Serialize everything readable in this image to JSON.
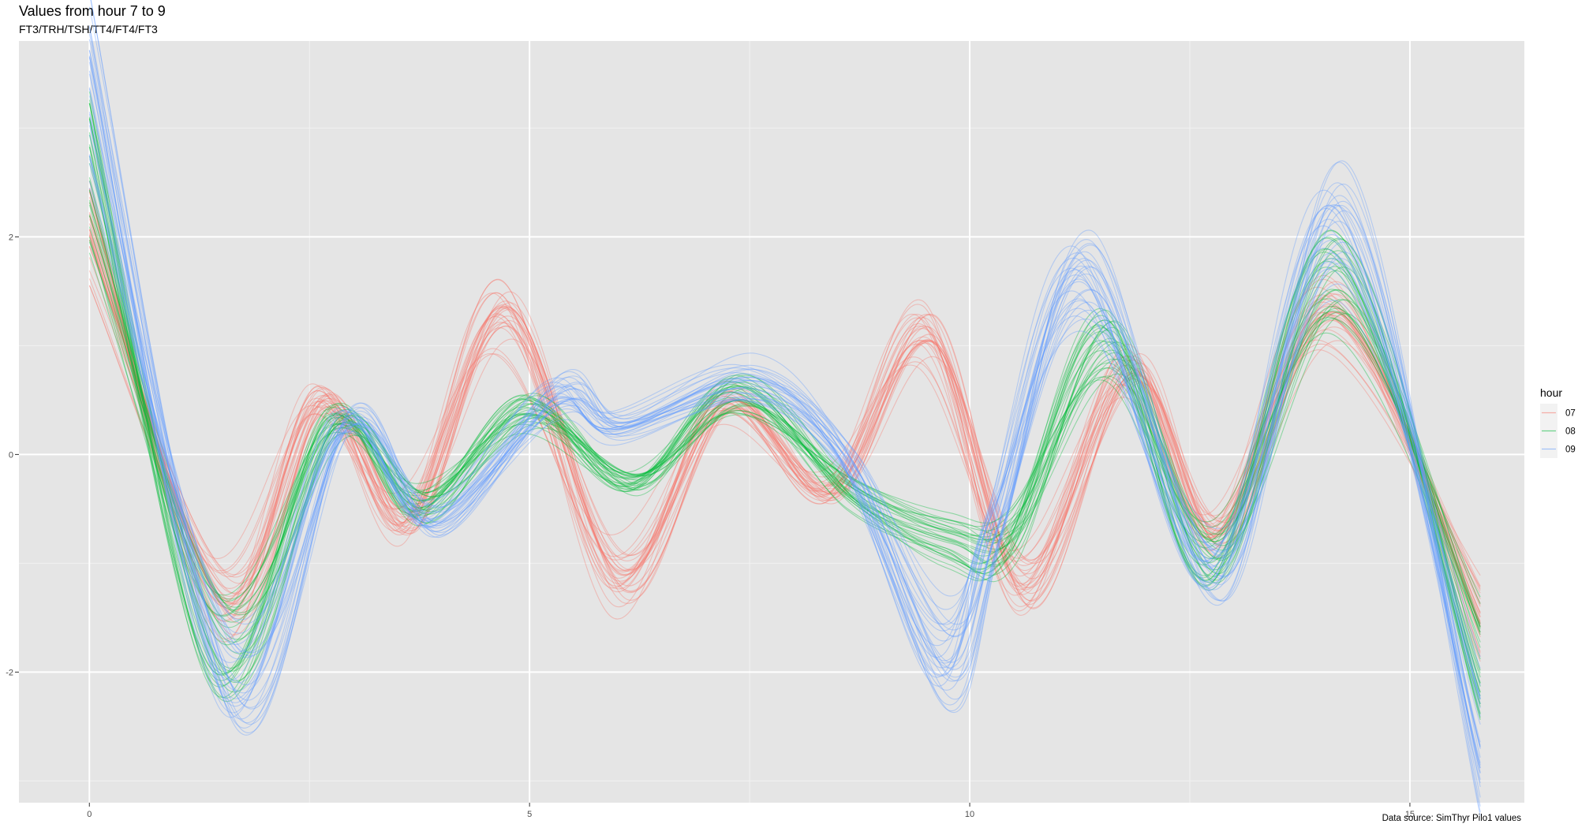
{
  "chart_data": {
    "type": "line",
    "title": "Values from hour 7 to 9",
    "subtitle": "FT3/TRH/TSH/TT4/FT4/FT3",
    "caption": "Data source: SimThyr Pilo1 values",
    "xlabel": "",
    "ylabel": "",
    "xlim": [
      -0.8,
      16.3
    ],
    "ylim": [
      -3.2,
      3.8
    ],
    "x_ticks": [
      0,
      5,
      10,
      15
    ],
    "y_ticks": [
      -2,
      0,
      2
    ],
    "grid": true,
    "legend": {
      "title": "hour",
      "position": "right",
      "entries": [
        "07",
        "08",
        "09"
      ]
    },
    "series": [
      {
        "name": "07",
        "color": "#F8766D",
        "curve_count": 30,
        "mean_profile": [
          [
            0,
            2.0
          ],
          [
            1.5,
            -1.3
          ],
          [
            2.6,
            0.45
          ],
          [
            3.6,
            -0.6
          ],
          [
            4.7,
            1.25
          ],
          [
            6.0,
            -1.1
          ],
          [
            7.2,
            0.45
          ],
          [
            8.4,
            -0.35
          ],
          [
            9.5,
            1.05
          ],
          [
            10.6,
            -1.15
          ],
          [
            11.8,
            0.75
          ],
          [
            12.8,
            -0.7
          ],
          [
            14.1,
            1.25
          ],
          [
            15.8,
            -1.45
          ]
        ]
      },
      {
        "name": "08",
        "color": "#00BA38",
        "curve_count": 30,
        "mean_profile": [
          [
            0,
            2.6
          ],
          [
            1.5,
            -1.7
          ],
          [
            2.8,
            0.3
          ],
          [
            3.8,
            -0.45
          ],
          [
            5.0,
            0.4
          ],
          [
            6.2,
            -0.25
          ],
          [
            7.4,
            0.55
          ],
          [
            8.7,
            -0.35
          ],
          [
            9.8,
            -0.75
          ],
          [
            10.5,
            -0.75
          ],
          [
            11.6,
            1.0
          ],
          [
            12.8,
            -0.95
          ],
          [
            14.2,
            1.6
          ],
          [
            15.8,
            -1.9
          ]
        ]
      },
      {
        "name": "09",
        "color": "#619CFF",
        "curve_count": 30,
        "mean_profile": [
          [
            0,
            3.3
          ],
          [
            1.6,
            -2.0
          ],
          [
            2.9,
            0.3
          ],
          [
            3.9,
            -0.6
          ],
          [
            5.3,
            0.55
          ],
          [
            6.0,
            0.25
          ],
          [
            7.5,
            0.65
          ],
          [
            8.6,
            -0.05
          ],
          [
            9.7,
            -1.85
          ],
          [
            10.3,
            -0.6
          ],
          [
            11.3,
            1.6
          ],
          [
            12.8,
            -1.05
          ],
          [
            14.2,
            2.05
          ],
          [
            15.8,
            -2.6
          ]
        ]
      }
    ]
  }
}
